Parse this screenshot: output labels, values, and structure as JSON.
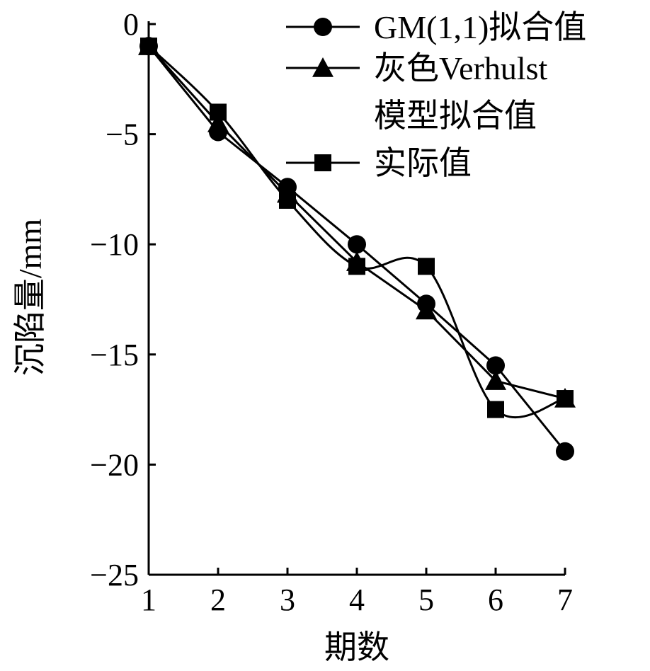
{
  "chart_data": {
    "type": "line",
    "title": "",
    "xlabel": "期数",
    "ylabel": "沉陷量/mm",
    "x": [
      1,
      2,
      3,
      4,
      5,
      6,
      7
    ],
    "xlim": [
      1,
      7
    ],
    "ylim": [
      -25,
      0
    ],
    "x_ticks": [
      "1",
      "2",
      "3",
      "4",
      "5",
      "6",
      "7"
    ],
    "y_ticks": [
      "0",
      "−5",
      "−10",
      "−15",
      "−20",
      "−25"
    ],
    "grid": false,
    "legend_position": "top-right",
    "series": [
      {
        "name": "GM(1,1)拟合值",
        "marker": "circle",
        "smooth": false,
        "values": [
          -1.0,
          -4.9,
          -7.4,
          -10.0,
          -12.7,
          -15.5,
          -19.4
        ]
      },
      {
        "name": "灰色Verhulst模型拟合值",
        "legend_lines": [
          "灰色Verhulst",
          "模型拟合值"
        ],
        "marker": "triangle",
        "smooth": false,
        "values": [
          -1.0,
          -4.5,
          -7.7,
          -10.8,
          -13.0,
          -16.2,
          -17.0
        ]
      },
      {
        "name": "实际值",
        "marker": "square",
        "smooth": true,
        "values": [
          -1.0,
          -4.0,
          -8.0,
          -11.0,
          -11.0,
          -17.5,
          -17.0
        ]
      }
    ],
    "colors": {
      "line": "#000000",
      "background": "#ffffff"
    }
  }
}
